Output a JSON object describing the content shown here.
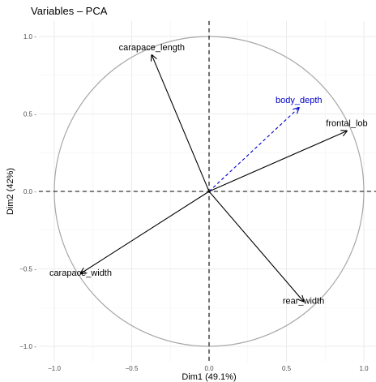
{
  "chart_data": {
    "type": "scatter",
    "title": "Variables – PCA",
    "xlabel": "Dim1 (49.1%)",
    "ylabel": "Dim2 (42%)",
    "xlim": [
      -1.1,
      1.1
    ],
    "ylim": [
      -1.1,
      1.1
    ],
    "x_ticks": [
      -1.0,
      -0.5,
      0.0,
      0.5,
      1.0
    ],
    "y_ticks": [
      -1.0,
      -0.5,
      0.0,
      0.5,
      1.0
    ],
    "x_tick_labels": [
      "−1.0",
      "−0.5",
      "0.0",
      "0.5",
      "1.0"
    ],
    "y_tick_labels": [
      "−1.0 -",
      "−0.5 -",
      "0.0 -",
      "0.5 -",
      "1.0 -"
    ],
    "grid": true,
    "correlation_circle": true,
    "variables": [
      {
        "name": "carapace_length",
        "x": -0.37,
        "y": 0.88,
        "color": "#000000",
        "dashed": false
      },
      {
        "name": "body_depth",
        "x": 0.58,
        "y": 0.54,
        "color": "#0000cc",
        "dashed": true
      },
      {
        "name": "frontal_lob",
        "x": 0.89,
        "y": 0.39,
        "color": "#000000",
        "dashed": false
      },
      {
        "name": "carapace_width",
        "x": -0.83,
        "y": -0.53,
        "color": "#000000",
        "dashed": false
      },
      {
        "name": "rear_width",
        "x": 0.61,
        "y": -0.71,
        "color": "#000000",
        "dashed": false
      }
    ]
  }
}
